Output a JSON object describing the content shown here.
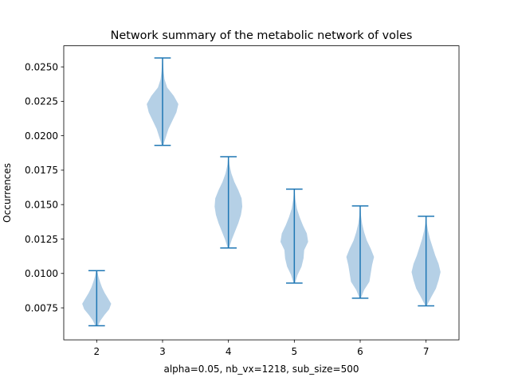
{
  "chart_data": {
    "type": "violin",
    "title": "Network summary of the metabolic network of voles",
    "xlabel": "alpha=0.05, nb_vx=1218, sub_size=500",
    "ylabel": "Occurrences",
    "x": [
      2,
      3,
      4,
      5,
      6,
      7
    ],
    "xlim": [
      1.5,
      7.5
    ],
    "ylim": [
      0.00518,
      0.02653
    ],
    "yticks": [
      0.0075,
      0.01,
      0.0125,
      0.015,
      0.0175,
      0.02,
      0.0225,
      0.025
    ],
    "ytick_labels": [
      "0.0075",
      "0.0100",
      "0.0125",
      "0.0150",
      "0.0175",
      "0.0200",
      "0.0225",
      "0.0250"
    ],
    "fill_color": "#b5d0e6",
    "line_color": "#1f77b4",
    "violins": [
      {
        "x": 2,
        "min": 0.0062,
        "max": 0.0102,
        "profile": [
          [
            0.0062,
            0.02
          ],
          [
            0.0066,
            0.06
          ],
          [
            0.007,
            0.12
          ],
          [
            0.0074,
            0.19
          ],
          [
            0.0078,
            0.22
          ],
          [
            0.0082,
            0.17
          ],
          [
            0.0086,
            0.12
          ],
          [
            0.009,
            0.08
          ],
          [
            0.0094,
            0.05
          ],
          [
            0.0098,
            0.025
          ],
          [
            0.0102,
            0.008
          ]
        ]
      },
      {
        "x": 3,
        "min": 0.0193,
        "max": 0.02565,
        "profile": [
          [
            0.0193,
            0.01
          ],
          [
            0.0199,
            0.05
          ],
          [
            0.0205,
            0.09
          ],
          [
            0.0211,
            0.15
          ],
          [
            0.0217,
            0.21
          ],
          [
            0.0223,
            0.24
          ],
          [
            0.0229,
            0.17
          ],
          [
            0.0235,
            0.07
          ],
          [
            0.0241,
            0.03
          ],
          [
            0.0247,
            0.015
          ],
          [
            0.0253,
            0.008
          ],
          [
            0.02565,
            0.004
          ]
        ]
      },
      {
        "x": 4,
        "min": 0.01185,
        "max": 0.01848,
        "profile": [
          [
            0.01185,
            0.01
          ],
          [
            0.01245,
            0.05
          ],
          [
            0.01305,
            0.1
          ],
          [
            0.01365,
            0.15
          ],
          [
            0.01425,
            0.19
          ],
          [
            0.01485,
            0.21
          ],
          [
            0.01545,
            0.2
          ],
          [
            0.01605,
            0.15
          ],
          [
            0.01665,
            0.09
          ],
          [
            0.01725,
            0.045
          ],
          [
            0.0179,
            0.015
          ],
          [
            0.01848,
            0.004
          ]
        ]
      },
      {
        "x": 5,
        "min": 0.0093,
        "max": 0.01612,
        "profile": [
          [
            0.0093,
            0.01
          ],
          [
            0.0099,
            0.05
          ],
          [
            0.0105,
            0.11
          ],
          [
            0.0111,
            0.14
          ],
          [
            0.0117,
            0.15
          ],
          [
            0.0123,
            0.21
          ],
          [
            0.0129,
            0.19
          ],
          [
            0.0135,
            0.13
          ],
          [
            0.0141,
            0.08
          ],
          [
            0.0147,
            0.04
          ],
          [
            0.0154,
            0.015
          ],
          [
            0.01612,
            0.004
          ]
        ]
      },
      {
        "x": 6,
        "min": 0.0082,
        "max": 0.0149,
        "profile": [
          [
            0.0082,
            0.01
          ],
          [
            0.0088,
            0.06
          ],
          [
            0.0094,
            0.14
          ],
          [
            0.01,
            0.16
          ],
          [
            0.0106,
            0.18
          ],
          [
            0.0112,
            0.21
          ],
          [
            0.0118,
            0.16
          ],
          [
            0.0124,
            0.1
          ],
          [
            0.013,
            0.06
          ],
          [
            0.0136,
            0.03
          ],
          [
            0.0142,
            0.012
          ],
          [
            0.0149,
            0.004
          ]
        ]
      },
      {
        "x": 7,
        "min": 0.00765,
        "max": 0.01415,
        "profile": [
          [
            0.00765,
            0.01
          ],
          [
            0.0083,
            0.08
          ],
          [
            0.0089,
            0.15
          ],
          [
            0.0095,
            0.19
          ],
          [
            0.0101,
            0.22
          ],
          [
            0.0107,
            0.19
          ],
          [
            0.0113,
            0.14
          ],
          [
            0.0119,
            0.1
          ],
          [
            0.0125,
            0.06
          ],
          [
            0.0131,
            0.03
          ],
          [
            0.0136,
            0.012
          ],
          [
            0.01415,
            0.004
          ]
        ]
      }
    ]
  }
}
